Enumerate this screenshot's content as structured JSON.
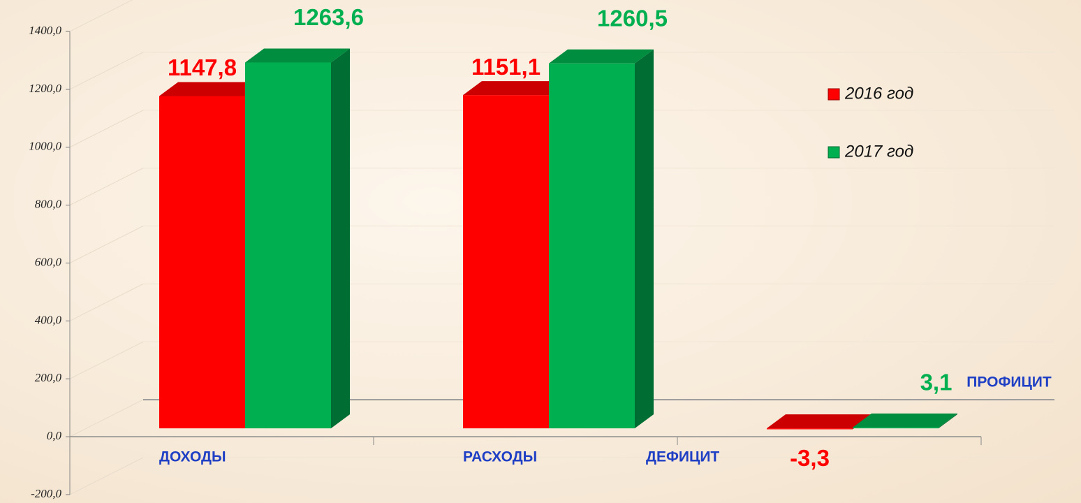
{
  "chart_data": {
    "type": "bar3d",
    "categories": [
      "ДОХОДЫ",
      "РАСХОДЫ",
      "ДЕФИЦИТ"
    ],
    "series": [
      {
        "name": "2016 год",
        "color": "#ff0000",
        "values": [
          1147.8,
          1151.1,
          -3.3
        ],
        "value_labels": [
          "1147,8",
          "1151,1",
          "-3,3"
        ]
      },
      {
        "name": "2017 год",
        "color": "#00b050",
        "values": [
          1263.6,
          1260.5,
          3.1
        ],
        "value_labels": [
          "1263,6",
          "1260,5",
          "3,1"
        ]
      }
    ],
    "annotations": [
      "ПРОФИЦИТ"
    ],
    "ylim": [
      -200,
      1400
    ],
    "yticks": [
      {
        "value": -200,
        "label": "-200,0"
      },
      {
        "value": 0,
        "label": "0,0"
      },
      {
        "value": 200,
        "label": "200,0"
      },
      {
        "value": 400,
        "label": "400,0"
      },
      {
        "value": 600,
        "label": "600,0"
      },
      {
        "value": 800,
        "label": "800,0"
      },
      {
        "value": 1000,
        "label": "1000,0"
      },
      {
        "value": 1200,
        "label": "1200,0"
      },
      {
        "value": 1400,
        "label": "1400,0"
      }
    ],
    "grid": true,
    "legend": "right"
  }
}
